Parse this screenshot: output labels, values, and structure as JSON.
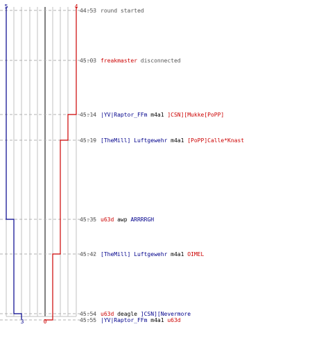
{
  "colors": {
    "team_blue": "#00008b",
    "team_red": "#cc0000",
    "time_text": "#555555",
    "neutral_text": "#000000",
    "grid": "#c0c0c0",
    "zero_line": "#808080"
  },
  "score_labels": {
    "blue_start": "5",
    "red_start": "4",
    "blue_end": "3",
    "red_end": "0"
  },
  "events": [
    {
      "time": "44:53",
      "parts": [
        {
          "t": "round started",
          "c": "gray"
        }
      ]
    },
    {
      "time": "45:03",
      "parts": [
        {
          "t": "freakmaster",
          "c": "red"
        },
        {
          "t": " disconnected",
          "c": "gray"
        }
      ]
    },
    {
      "time": "45:14",
      "parts": [
        {
          "t": "|YV|Raptor_FFm",
          "c": "blue"
        },
        {
          "t": " m4a1 ",
          "c": "black"
        },
        {
          "t": "]CSN][Mukke[PoPP]",
          "c": "red"
        }
      ]
    },
    {
      "time": "45:19",
      "parts": [
        {
          "t": "[TheMill] Luftgewehr",
          "c": "blue"
        },
        {
          "t": " m4a1 ",
          "c": "black"
        },
        {
          "t": "[PoPP]Calle*Knast",
          "c": "red"
        }
      ]
    },
    {
      "time": "45:35",
      "parts": [
        {
          "t": "u63d",
          "c": "red"
        },
        {
          "t": " awp ",
          "c": "black"
        },
        {
          "t": "ARRRRGH",
          "c": "blue"
        }
      ]
    },
    {
      "time": "45:42",
      "parts": [
        {
          "t": "[TheMill] Luftgewehr",
          "c": "blue"
        },
        {
          "t": " m4a1 ",
          "c": "black"
        },
        {
          "t": "OIMEL",
          "c": "red"
        }
      ]
    },
    {
      "time": "45:54",
      "parts": [
        {
          "t": "u63d",
          "c": "red"
        },
        {
          "t": " deagle ",
          "c": "black"
        },
        {
          "t": "]CSN][Nevermore",
          "c": "blue"
        }
      ]
    },
    {
      "time": "45:55",
      "parts": [
        {
          "t": "|YV|Raptor_FFm",
          "c": "blue"
        },
        {
          "t": " m4a1 ",
          "c": "black"
        },
        {
          "t": "u63d",
          "c": "red"
        }
      ]
    }
  ],
  "chart_data": {
    "type": "line",
    "x": [
      "44:53",
      "45:03",
      "45:14",
      "45:19",
      "45:35",
      "45:42",
      "45:54",
      "45:55"
    ],
    "series": [
      {
        "values": [
          5,
          5,
          5,
          5,
          4,
          4,
          3,
          3
        ]
      },
      {
        "values": [
          4,
          4,
          3,
          2,
          2,
          1,
          1,
          0
        ]
      }
    ],
    "ylim": [
      0,
      5
    ],
    "grid": true
  }
}
